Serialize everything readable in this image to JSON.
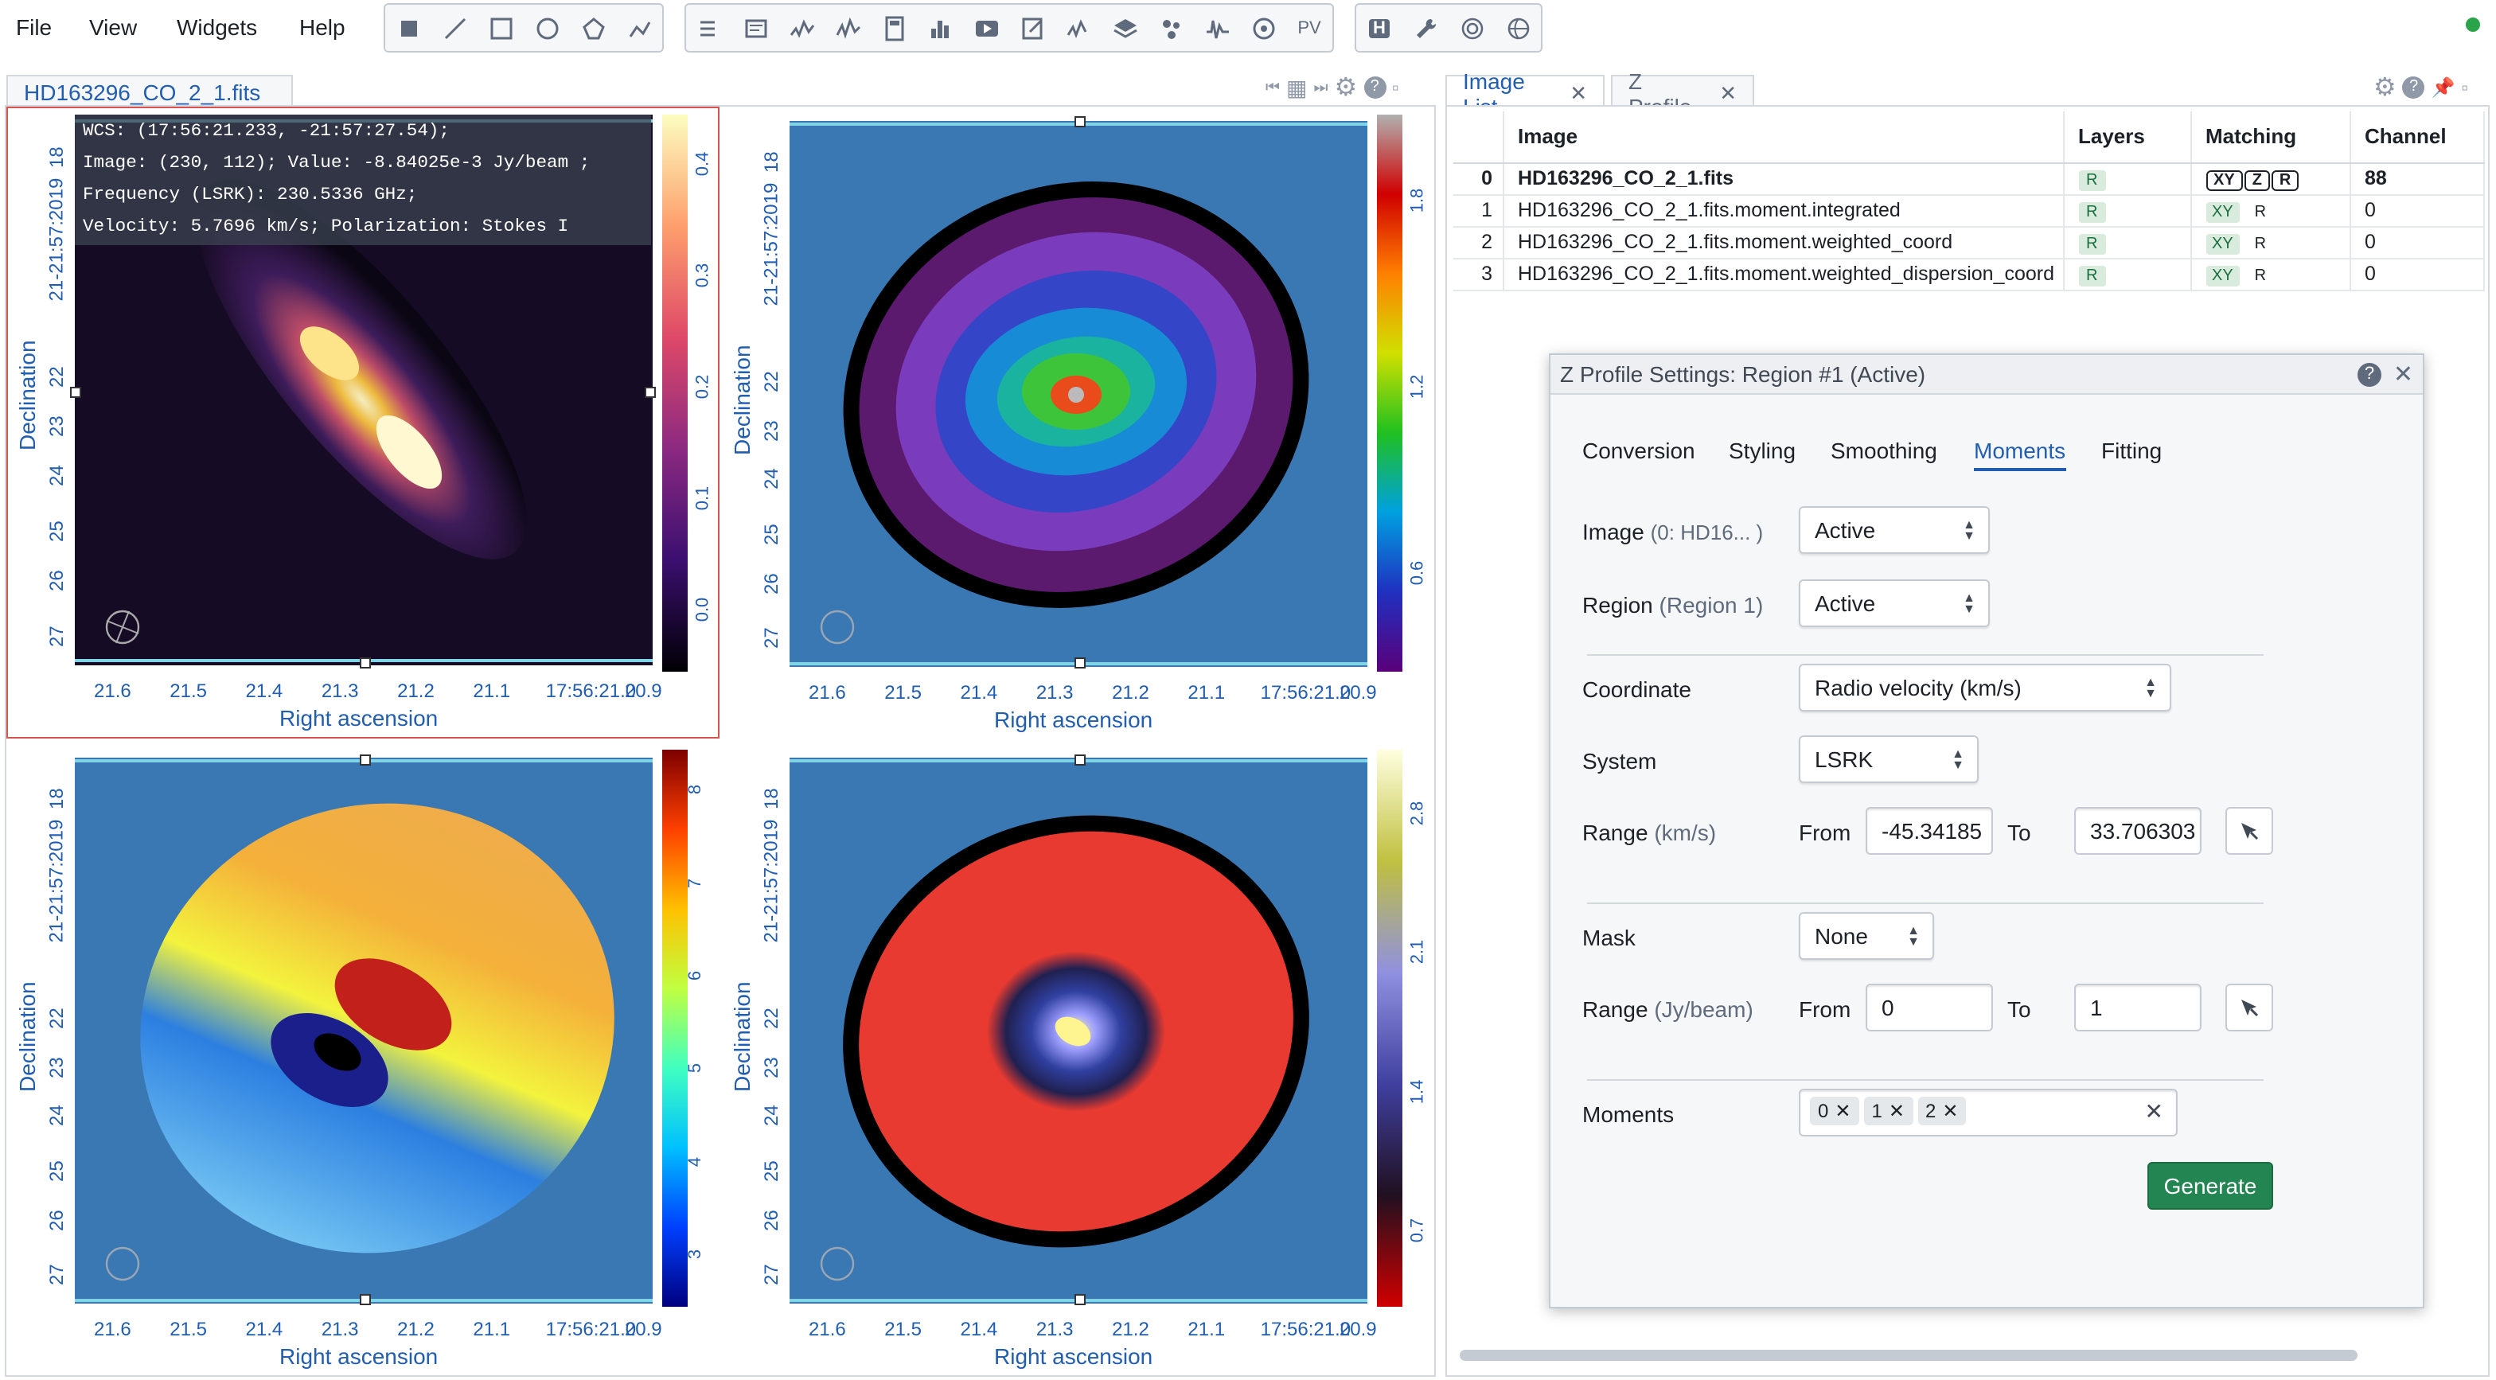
{
  "menubar": {
    "file": "File",
    "view": "View",
    "widgets": "Widgets",
    "help": "Help"
  },
  "toolbar": {
    "pv_label": "PV",
    "h_label": "H"
  },
  "image_panel": {
    "tab_title": "HD163296_CO_2_1.fits",
    "cursor_info": {
      "wcs": "WCS: (17:56:21.233, -21:57:27.54);",
      "image": "Image: (230, 112); Value: -8.84025e-3 Jy/beam ;",
      "frequency": "Frequency (LSRK): 230.5336 GHz;",
      "velocity": "Velocity: 5.7696 km/s; Polarization: Stokes I"
    },
    "axes": {
      "xlabel": "Right ascension",
      "ylabel": "Declination",
      "xticks": [
        "21.6",
        "21.5",
        "21.4",
        "21.3",
        "21.2",
        "21.1",
        "17:56:21.0",
        "20.9"
      ],
      "yticks": [
        "18",
        "21:57:20 19",
        "21-21:57:20",
        "22",
        "23",
        "24",
        "25",
        "26",
        "27"
      ],
      "yticks_main": [
        "18",
        "-21:57:20",
        "19",
        "22",
        "23",
        "24",
        "25",
        "26",
        "27"
      ]
    },
    "colorbars": {
      "tl": [
        "0.0",
        "0.1",
        "0.2",
        "0.3",
        "0.4"
      ],
      "tr": [
        "0.6",
        "1.2",
        "1.8"
      ],
      "bl": [
        "3",
        "4",
        "5",
        "6",
        "7",
        "8"
      ],
      "br": [
        "0.7",
        "1.4",
        "2.1",
        "2.8"
      ]
    }
  },
  "right_panel": {
    "tabs": [
      {
        "label": "Image List"
      },
      {
        "label": "Z Profile"
      }
    ],
    "table": {
      "headers": [
        "Image",
        "Layers",
        "Matching",
        "Channel"
      ],
      "rows": [
        {
          "idx": "0",
          "name": "HD163296_CO_2_1.fits",
          "layer": "R",
          "match": [
            "XY",
            "Z",
            "R"
          ],
          "channel": "88"
        },
        {
          "idx": "1",
          "name": "HD163296_CO_2_1.fits.moment.integrated",
          "layer": "R",
          "match_xy": "XY",
          "match_r": "R",
          "channel": "0"
        },
        {
          "idx": "2",
          "name": "HD163296_CO_2_1.fits.moment.weighted_coord",
          "layer": "R",
          "match_xy": "XY",
          "match_r": "R",
          "channel": "0"
        },
        {
          "idx": "3",
          "name": "HD163296_CO_2_1.fits.moment.weighted_dispersion_coord",
          "layer": "R",
          "match_xy": "XY",
          "match_r": "R",
          "channel": "0"
        }
      ]
    }
  },
  "dialog": {
    "title": "Z Profile Settings: Region #1 (Active)",
    "tabs": [
      "Conversion",
      "Styling",
      "Smoothing",
      "Moments",
      "Fitting"
    ],
    "active_tab": "Moments",
    "image_label": "Image",
    "image_unit": "(0: HD16... )",
    "image_value": "Active",
    "region_label": "Region",
    "region_unit": "(Region 1)",
    "region_value": "Active",
    "coordinate_label": "Coordinate",
    "coordinate_value": "Radio velocity (km/s)",
    "system_label": "System",
    "system_value": "LSRK",
    "range1_label": "Range",
    "range1_unit": "(km/s)",
    "from_label": "From",
    "to_label": "To",
    "range1_from": "-45.34185",
    "range1_to": "33.706303",
    "mask_label": "Mask",
    "mask_value": "None",
    "range2_label": "Range",
    "range2_unit": "(Jy/beam)",
    "range2_from": "0",
    "range2_to": "1",
    "moments_label": "Moments",
    "moments": [
      "0",
      "1",
      "2"
    ],
    "generate_label": "Generate"
  }
}
